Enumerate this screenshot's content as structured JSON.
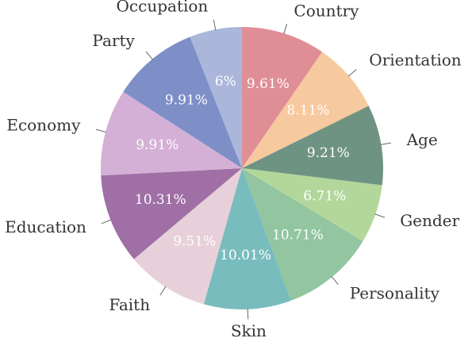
{
  "figure": {
    "background_color": "#ffffff"
  },
  "chart_data": {
    "type": "pie",
    "title": "",
    "direction": "clockwise",
    "start_angle_deg": 0,
    "legend": "none",
    "percent_label_color": "#ffffff",
    "outer_label_color": "#333333",
    "leader_line_color": "#666666",
    "slices": [
      {
        "label": "Country",
        "value": 9.61,
        "display": "9.61%",
        "color": "#e08e96"
      },
      {
        "label": "Orientation",
        "value": 8.11,
        "display": "8.11%",
        "color": "#f7c99e"
      },
      {
        "label": "Age",
        "value": 9.21,
        "display": "9.21%",
        "color": "#6f9383"
      },
      {
        "label": "Gender",
        "value": 6.71,
        "display": "6.71%",
        "color": "#b3d79b"
      },
      {
        "label": "Personality",
        "value": 10.71,
        "display": "10.71%",
        "color": "#92c5a0"
      },
      {
        "label": "Skin",
        "value": 10.01,
        "display": "10.01%",
        "color": "#79bcbe"
      },
      {
        "label": "Faith",
        "value": 9.51,
        "display": "9.51%",
        "color": "#e7d0d9"
      },
      {
        "label": "Education",
        "value": 10.31,
        "display": "10.31%",
        "color": "#a06fa6"
      },
      {
        "label": "Economy",
        "value": 9.91,
        "display": "9.91%",
        "color": "#d5b0d6"
      },
      {
        "label": "Party",
        "value": 9.91,
        "display": "9.91%",
        "color": "#7e8fc8"
      },
      {
        "label": "Occupation",
        "value": 6.0,
        "display": "6%",
        "color": "#aab7da"
      }
    ]
  }
}
